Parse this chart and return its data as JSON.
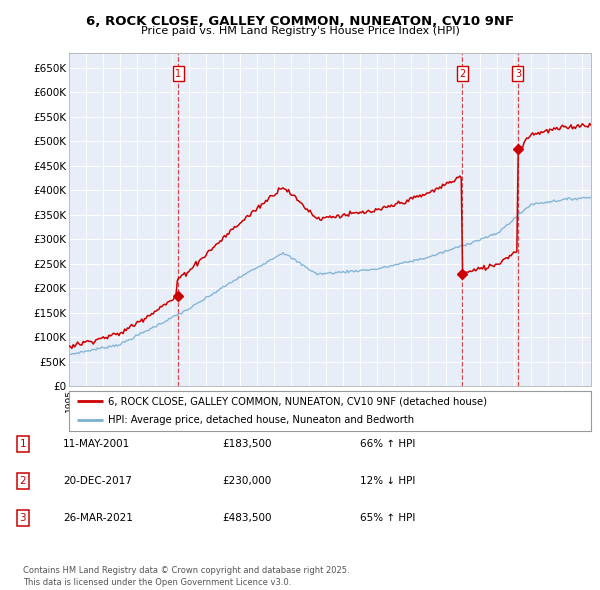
{
  "title": "6, ROCK CLOSE, GALLEY COMMON, NUNEATON, CV10 9NF",
  "subtitle": "Price paid vs. HM Land Registry's House Price Index (HPI)",
  "ylim": [
    0,
    680000
  ],
  "yticks": [
    0,
    50000,
    100000,
    150000,
    200000,
    250000,
    300000,
    350000,
    400000,
    450000,
    500000,
    550000,
    600000,
    650000
  ],
  "xlim_start": 1995.0,
  "xlim_end": 2025.5,
  "sale_dates": [
    2001.37,
    2017.97,
    2021.23
  ],
  "sale_prices": [
    183500,
    230000,
    483500
  ],
  "sale_labels": [
    "1",
    "2",
    "3"
  ],
  "sale_info": [
    {
      "num": "1",
      "date": "11-MAY-2001",
      "price": "£183,500",
      "hpi": "66% ↑ HPI"
    },
    {
      "num": "2",
      "date": "20-DEC-2017",
      "price": "£230,000",
      "hpi": "12% ↓ HPI"
    },
    {
      "num": "3",
      "date": "26-MAR-2021",
      "price": "£483,500",
      "hpi": "65% ↑ HPI"
    }
  ],
  "legend_house": "6, ROCK CLOSE, GALLEY COMMON, NUNEATON, CV10 9NF (detached house)",
  "legend_hpi": "HPI: Average price, detached house, Nuneaton and Bedworth",
  "footer": "Contains HM Land Registry data © Crown copyright and database right 2025.\nThis data is licensed under the Open Government Licence v3.0.",
  "house_color": "#cc0000",
  "hpi_color": "#7ab0d4",
  "bg_color": "#ffffff",
  "plot_bg_color": "#e8eef8"
}
